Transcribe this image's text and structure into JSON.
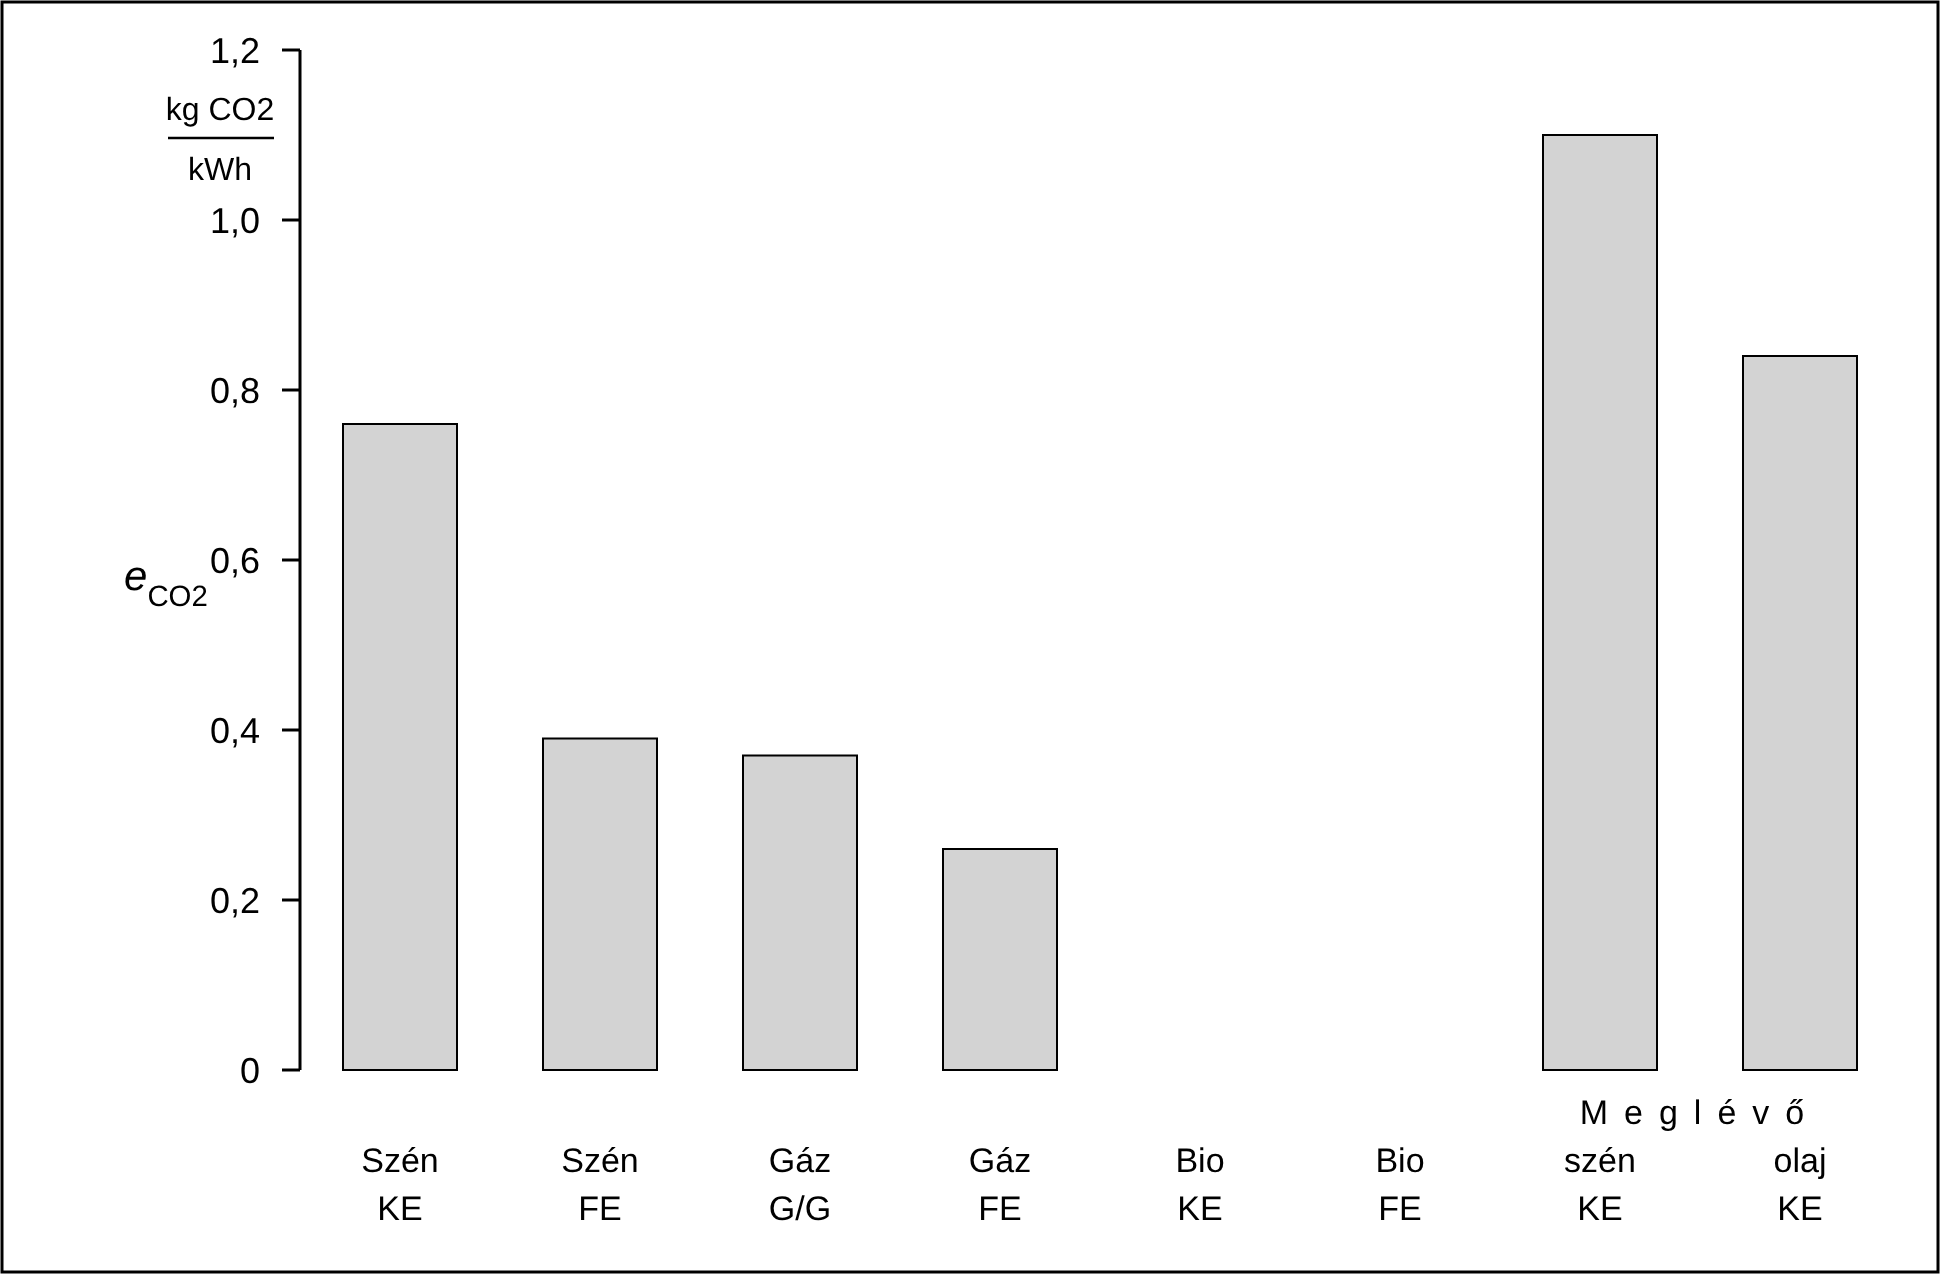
{
  "chart_data": {
    "type": "bar",
    "ylabel": "e$_{CO2}$",
    "categories": [
      "Szén KE",
      "Szén FE",
      "Gáz G/G",
      "Gáz FE",
      "Bio KE",
      "Bio FE",
      "szén KE",
      "olaj KE"
    ],
    "values": [
      0.76,
      0.39,
      0.37,
      0.26,
      0,
      0,
      1.1,
      0.84
    ],
    "color": "#d3d3d3",
    "ylim": [
      0,
      1.2
    ],
    "yticks": [
      0,
      {
        "value": 0.2,
        "label": "0,2"
      },
      {
        "value": 0.4,
        "label": "0,4"
      },
      {
        "value": 0.6,
        "label": "0,6"
      },
      {
        "value": 0.8,
        "label": "0,8"
      },
      {
        "value": 1.0,
        "label": "1,0"
      },
      {
        "value": 1.2,
        "label": "1,2"
      }
    ],
    "annotations": [
      "kg CO2",
      "kWh",
      "Meglévő"
    ],
    "grid": false
  }
}
